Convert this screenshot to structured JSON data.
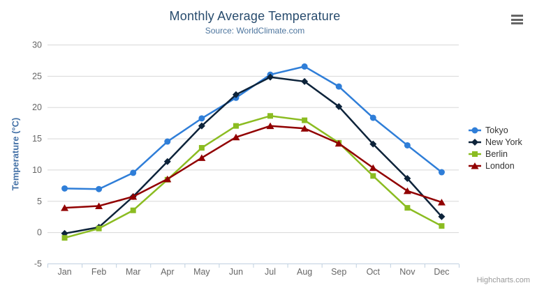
{
  "chart_data": {
    "type": "line",
    "title": "Monthly Average Temperature",
    "subtitle": "Source: WorldClimate.com",
    "categories": [
      "Jan",
      "Feb",
      "Mar",
      "Apr",
      "May",
      "Jun",
      "Jul",
      "Aug",
      "Sep",
      "Oct",
      "Nov",
      "Dec"
    ],
    "series": [
      {
        "name": "Tokyo",
        "color": "#2f7ed8",
        "marker": "circle",
        "values": [
          7.0,
          6.9,
          9.5,
          14.5,
          18.2,
          21.5,
          25.2,
          26.5,
          23.3,
          18.3,
          13.9,
          9.6
        ]
      },
      {
        "name": "New York",
        "color": "#0d233a",
        "marker": "diamond",
        "values": [
          -0.2,
          0.8,
          5.7,
          11.3,
          17.0,
          22.0,
          24.8,
          24.1,
          20.1,
          14.1,
          8.6,
          2.5
        ]
      },
      {
        "name": "Berlin",
        "color": "#8bbc21",
        "marker": "square",
        "values": [
          -0.9,
          0.6,
          3.5,
          8.4,
          13.5,
          17.0,
          18.6,
          17.9,
          14.3,
          9.0,
          3.9,
          1.0
        ]
      },
      {
        "name": "London",
        "color": "#910000",
        "marker": "triangle",
        "values": [
          3.9,
          4.2,
          5.7,
          8.5,
          11.9,
          15.2,
          17.0,
          16.6,
          14.2,
          10.3,
          6.6,
          4.8
        ]
      }
    ],
    "xlabel": "",
    "ylabel": "Temperature (°C)",
    "ylim": [
      -5,
      30
    ],
    "yticks": [
      -5,
      0,
      5,
      10,
      15,
      20,
      25,
      30
    ],
    "grid": true,
    "legend_position": "right"
  },
  "colors": {
    "grid": "#d8d8d8",
    "axis_line": "#c0d0e0",
    "tick_text": "#666666",
    "title": "#274b6d",
    "subtitle": "#4d759e",
    "axis_title": "#4572a7",
    "legend_text": "#333333",
    "credits": "#999999"
  },
  "export_menu": {
    "icon_name": "hamburger-menu-icon"
  },
  "credits": {
    "label": "Highcharts.com"
  }
}
